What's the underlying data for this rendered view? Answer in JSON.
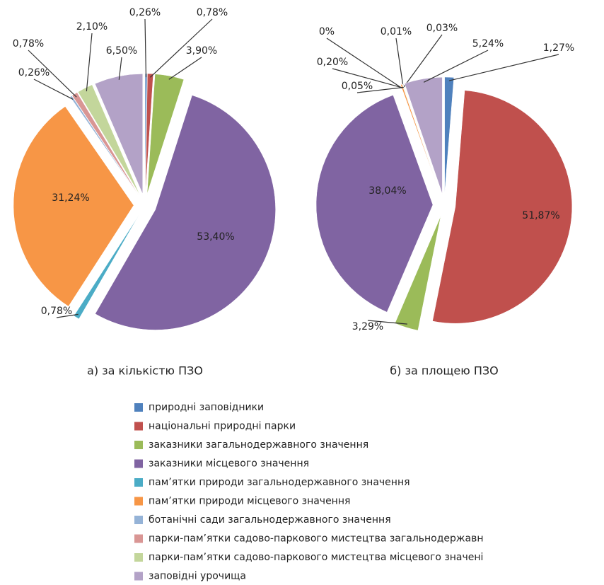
{
  "chart_data": {
    "type": "pie",
    "categories": [
      "природні заповідники",
      "національні природні парки",
      "заказники загальнодержавного значення",
      "заказники місцевого значення",
      "пам’ятки природи загальнодержавного значення",
      "пам’ятки природи місцевого значення",
      "ботанічні сади загальнодержавного значення",
      "парки-пам’ятки садово-паркового мистецтва загальнодержавн",
      "парки-пам’ятки садово-паркового мистецтва місцевого значені",
      "заповідні урочища"
    ],
    "colors": [
      "#4f81bd",
      "#c0504d",
      "#9bbb59",
      "#8064a2",
      "#4bacc6",
      "#f79646",
      "#95b3d7",
      "#d99694",
      "#c3d69b",
      "#b3a2c7"
    ],
    "series": [
      {
        "name": "а) за кількістю ПЗО",
        "values": [
          0.26,
          0.78,
          3.9,
          53.4,
          0.78,
          31.24,
          0.26,
          0.78,
          2.1,
          6.5
        ],
        "value_labels": [
          "0,26%",
          "0,78%",
          "3,90%",
          "53,40%",
          "0,78%",
          "31,24%",
          "0,26%",
          "0,78%",
          "2,10%",
          "6,50%"
        ]
      },
      {
        "name": "б) за площею ПЗО",
        "values": [
          1.27,
          51.87,
          3.29,
          38.04,
          0,
          0.2,
          0.01,
          0.03,
          0.05,
          5.24
        ],
        "value_labels": [
          "1,27%",
          "51,87%",
          "3,29%",
          "38,04%",
          "0%",
          "0,20%",
          "0,01%",
          "0,03%",
          "0,05%",
          "5,24%"
        ]
      }
    ]
  }
}
